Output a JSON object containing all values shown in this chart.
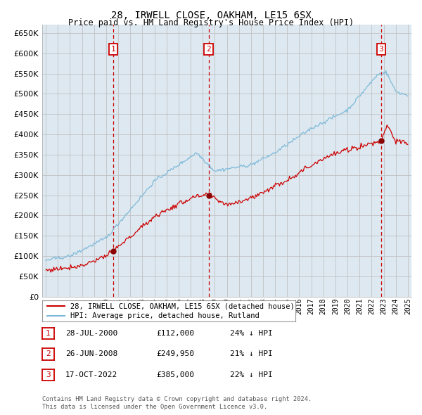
{
  "title": "28, IRWELL CLOSE, OAKHAM, LE15 6SX",
  "subtitle": "Price paid vs. HM Land Registry's House Price Index (HPI)",
  "legend_line1": "28, IRWELL CLOSE, OAKHAM, LE15 6SX (detached house)",
  "legend_line2": "HPI: Average price, detached house, Rutland",
  "footnote1": "Contains HM Land Registry data © Crown copyright and database right 2024.",
  "footnote2": "This data is licensed under the Open Government Licence v3.0.",
  "sale_events": [
    {
      "num": 1,
      "date": "28-JUL-2000",
      "price": "£112,000",
      "hpi_note": "24% ↓ HPI",
      "year": 2000.57,
      "value": 112000
    },
    {
      "num": 2,
      "date": "26-JUN-2008",
      "price": "£249,950",
      "hpi_note": "21% ↓ HPI",
      "year": 2008.49,
      "value": 249950
    },
    {
      "num": 3,
      "date": "17-OCT-2022",
      "price": "£385,000",
      "hpi_note": "22% ↓ HPI",
      "year": 2022.79,
      "value": 385000
    }
  ],
  "ylim": [
    0,
    670000
  ],
  "xlim_start": 1994.7,
  "xlim_end": 2025.3,
  "hpi_color": "#7ab8d9",
  "price_color": "#cc0000",
  "vline_color": "#cc0000",
  "grid_color": "#bbbbbb",
  "bg_color": "#dde8f0",
  "box_color": "#cc0000",
  "dot_color": "#8b0000"
}
